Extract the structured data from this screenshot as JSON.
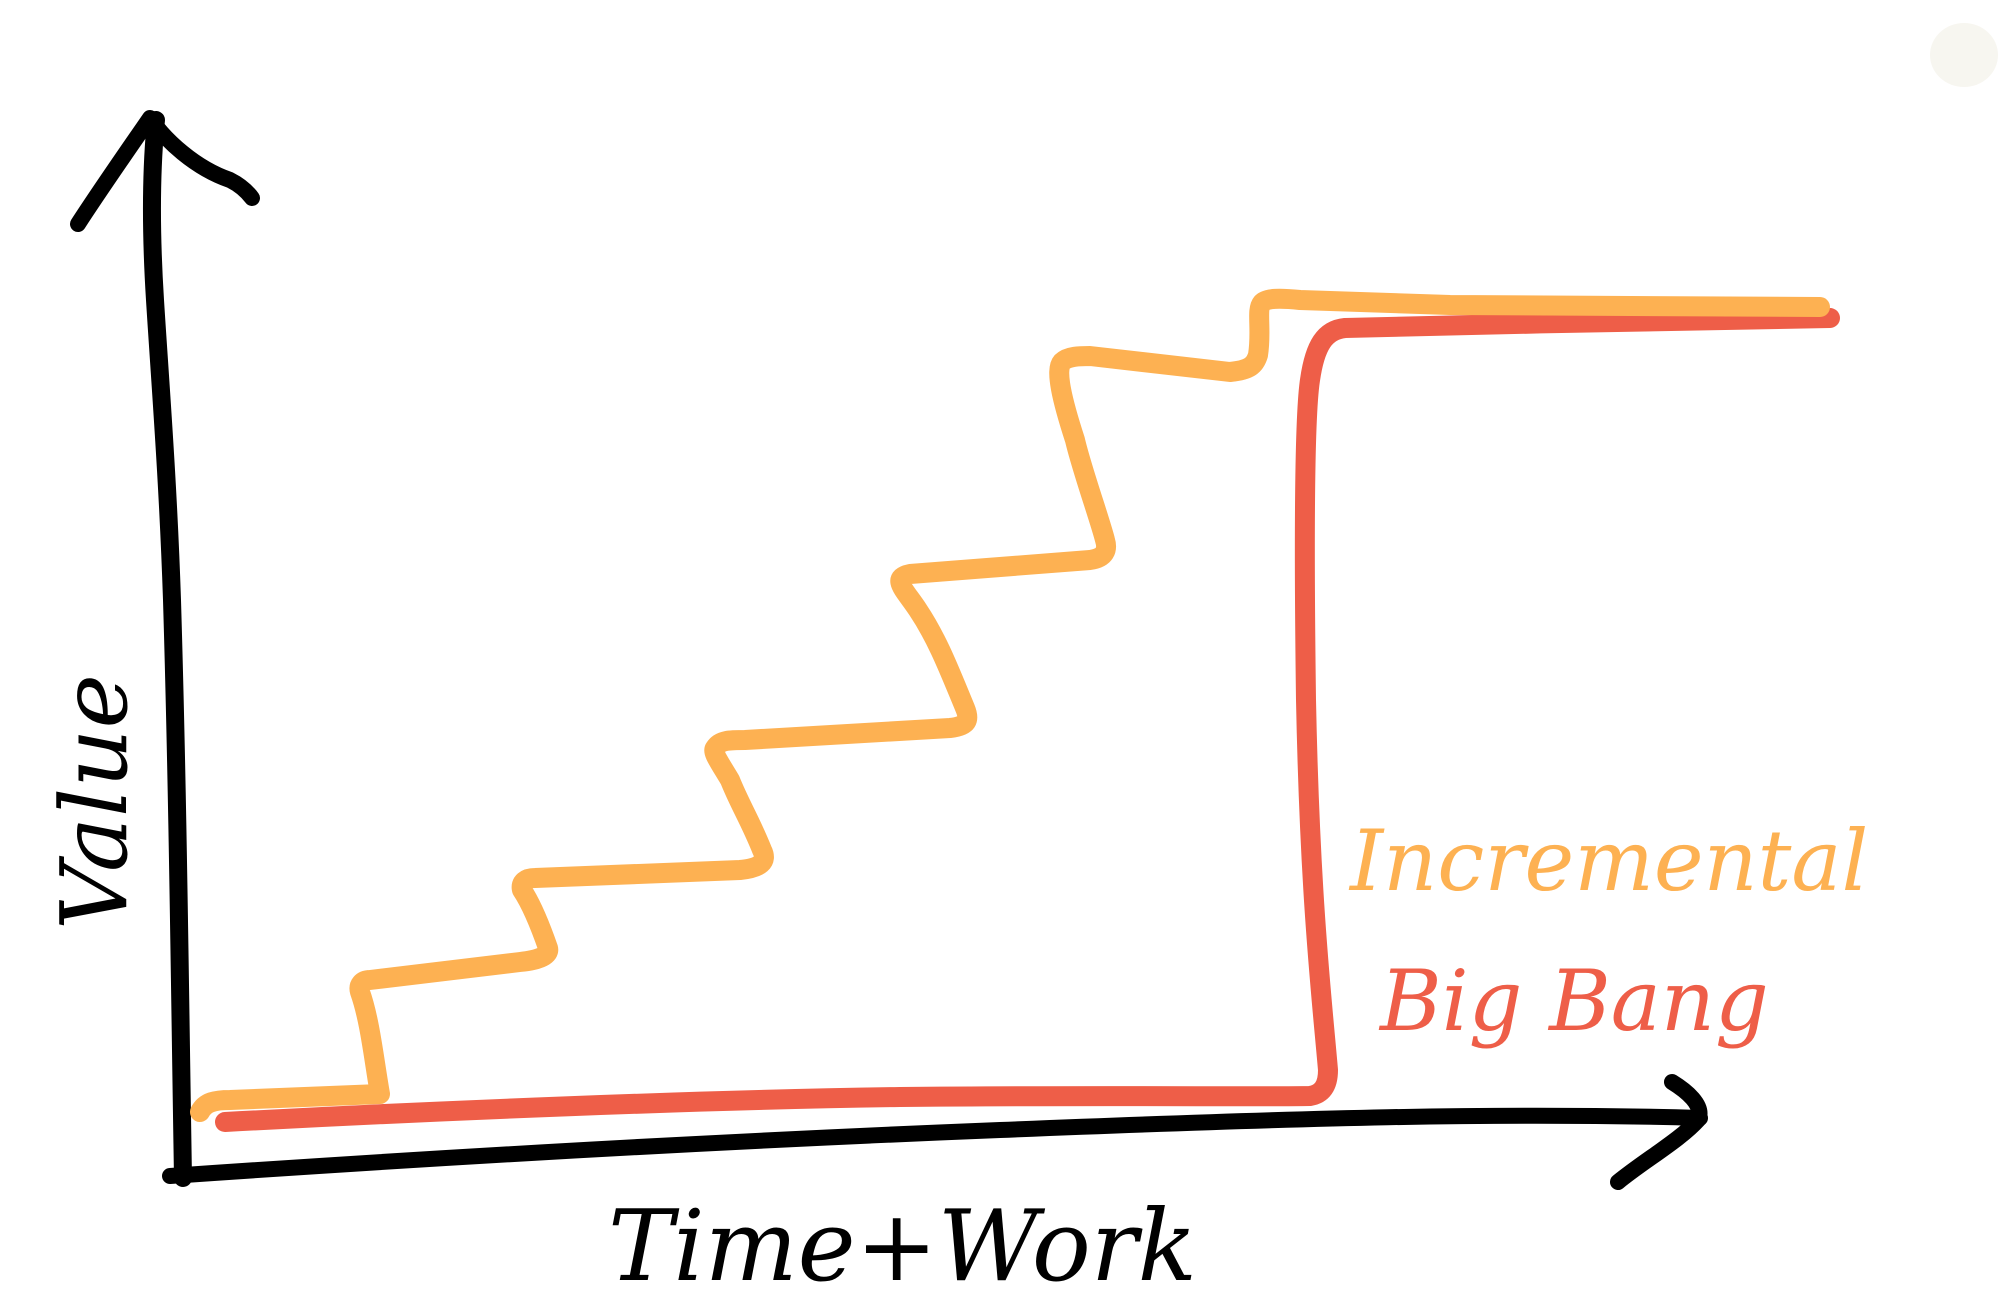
{
  "diagram": {
    "x_axis_label": "Time+Work",
    "y_axis_label": "Value",
    "legend": [
      {
        "label": "Incremental",
        "color": "#FDB152"
      },
      {
        "label": "Big Bang",
        "color": "#EE5E48"
      }
    ],
    "colors": {
      "axis": "#000000",
      "background": "#FFFFFF",
      "corner_mark": "#F7F6F0"
    }
  }
}
